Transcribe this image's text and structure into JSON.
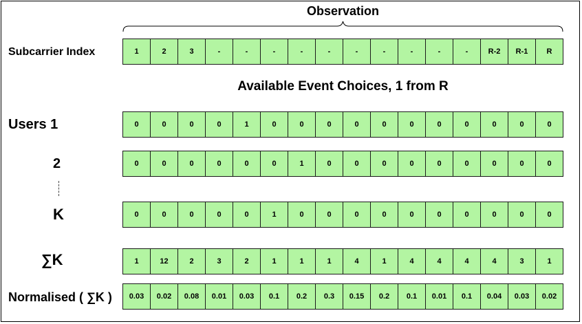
{
  "title": "Observation",
  "subtitle": "Available Event Choices, 1 from R",
  "rows": [
    {
      "label": "Subcarrier Index",
      "cells": [
        "1",
        "2",
        "3",
        "-",
        "-",
        "-",
        "-",
        "-",
        "-",
        "-",
        "-",
        "-",
        "-",
        "R-2",
        "R-1",
        "R"
      ]
    },
    {
      "label": "Users 1",
      "cells": [
        "0",
        "0",
        "0",
        "0",
        "1",
        "0",
        "0",
        "0",
        "0",
        "0",
        "0",
        "0",
        "0",
        "0",
        "0",
        "0"
      ]
    },
    {
      "label": "2",
      "cells": [
        "0",
        "0",
        "0",
        "0",
        "0",
        "0",
        "1",
        "0",
        "0",
        "0",
        "0",
        "0",
        "0",
        "0",
        "0",
        "0"
      ]
    },
    {
      "label": "K",
      "cells": [
        "0",
        "0",
        "0",
        "0",
        "0",
        "1",
        "0",
        "0",
        "0",
        "0",
        "0",
        "0",
        "0",
        "0",
        "0",
        "0"
      ]
    },
    {
      "label": "∑K",
      "cells": [
        "1",
        "12",
        "2",
        "3",
        "2",
        "1",
        "1",
        "1",
        "4",
        "1",
        "4",
        "4",
        "4",
        "4",
        "3",
        "1"
      ]
    },
    {
      "label": "Normalised ( ∑K )",
      "cells": [
        "0.03",
        "0.02",
        "0.08",
        "0.01",
        "0.03",
        "0.1",
        "0.2",
        "0.3",
        "0.15",
        "0.2",
        "0.1",
        "0.01",
        "0.1",
        "0.04",
        "0.03",
        "0.02"
      ]
    }
  ],
  "colors": {
    "cell_fill": "#b3f5a2",
    "cell_border": "#1a1a1a"
  }
}
